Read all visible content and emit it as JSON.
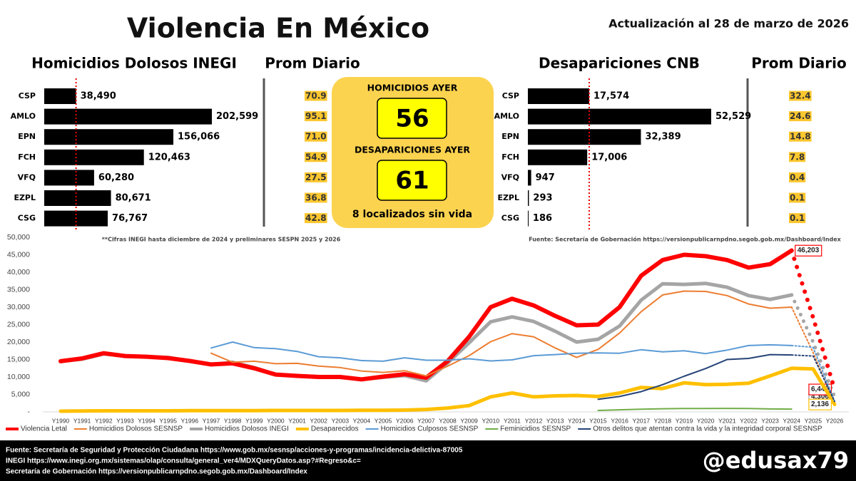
{
  "header": {
    "title": "Violencia En México",
    "update": "Actualización al 28 de marzo de 2026"
  },
  "panel": {
    "homicides": {
      "label": "HOMICIDIOS AYER",
      "value": 56
    },
    "disappearances": {
      "label": "DESAPARICIONES AYER",
      "value": 61
    },
    "note": "8 localizados sin vida"
  },
  "chart_data": [
    {
      "type": "hbar",
      "title": "Homicidios Dolosos INEGI",
      "categories": [
        "CSP",
        "AMLO",
        "EPN",
        "FCH",
        "VFQ",
        "EZPL",
        "CSG"
      ],
      "values": [
        38490,
        202599,
        156066,
        120463,
        60280,
        80671,
        76767
      ],
      "value_labels": [
        "38,490",
        "202,599",
        "156,066",
        "120,463",
        "60,280",
        "80,671",
        "76,767"
      ],
      "color": "#000000",
      "reference_line": "CSP",
      "daily": {
        "title": "Prom Diario",
        "values": [
          70.9,
          95.1,
          71.0,
          54.9,
          27.5,
          36.8,
          42.8
        ],
        "value_labels": [
          "70.9",
          "95.1",
          "71.0",
          "54.9",
          "27.5",
          "36.8",
          "42.8"
        ]
      },
      "note": "**Cifras INEGI hasta diciembre de 2024 y preliminares SESPN 2025 y 2026"
    },
    {
      "type": "hbar",
      "title": "Desapariciones CNB",
      "categories": [
        "CSP",
        "AMLO",
        "EPN",
        "FCH",
        "VFQ",
        "EZPL",
        "CSG"
      ],
      "values": [
        17574,
        52529,
        32389,
        17006,
        947,
        293,
        186
      ],
      "value_labels": [
        "17,574",
        "52,529",
        "32,389",
        "17,006",
        "947",
        "293",
        "186"
      ],
      "color": "#000000",
      "reference_line": "CSP",
      "daily": {
        "title": "Prom Diario",
        "values": [
          32.4,
          24.6,
          14.8,
          7.8,
          0.4,
          0.1,
          0.1
        ],
        "value_labels": [
          "32.4",
          "24.6",
          "14.8",
          "7.8",
          "0.4",
          "0.1",
          "0.1"
        ]
      },
      "note": "Fuente: Secretaría de Gobernación https://versionpublicarnpdno.segob.gob.mx/Dashboard/Index"
    },
    {
      "type": "line",
      "x": [
        "Y1990",
        "Y1991",
        "Y1992",
        "Y1993",
        "Y1994",
        "Y1995",
        "Y1996",
        "Y1997",
        "Y1998",
        "Y1999",
        "Y2000",
        "Y2001",
        "Y2002",
        "Y2003",
        "Y2004",
        "Y2005",
        "Y2006",
        "Y2007",
        "Y2008",
        "Y2009",
        "Y2010",
        "Y2011",
        "Y2012",
        "Y2013",
        "Y2014",
        "Y2015",
        "Y2016",
        "Y2017",
        "Y2018",
        "Y2019",
        "Y2020",
        "Y2021",
        "Y2022",
        "Y2023",
        "Y2024",
        "Y2025",
        "Y2026"
      ],
      "ylim": [
        0,
        50000
      ],
      "yticks": [
        {
          "value": 0,
          "label": "-"
        },
        {
          "value": 5000,
          "label": "5,000"
        },
        {
          "value": 10000,
          "label": "10,000"
        },
        {
          "value": 15000,
          "label": "15,000"
        },
        {
          "value": 20000,
          "label": "20,000"
        },
        {
          "value": 25000,
          "label": "25,000"
        },
        {
          "value": 30000,
          "label": "30,000"
        },
        {
          "value": 35000,
          "label": "35,000"
        },
        {
          "value": 40000,
          "label": "40,000"
        },
        {
          "value": 45000,
          "label": "45,000"
        },
        {
          "value": 50000,
          "label": "50,000"
        }
      ],
      "grid": false,
      "series": [
        {
          "name": "Violencia Letal",
          "color": "#ff0000",
          "width": 6,
          "dotted_after": "Y2024",
          "values": [
            14500,
            15300,
            16800,
            16000,
            15800,
            15400,
            14600,
            13600,
            13900,
            12500,
            10700,
            10300,
            10000,
            10000,
            9300,
            10100,
            10800,
            9800,
            14500,
            21500,
            30000,
            32400,
            30500,
            27500,
            24800,
            25000,
            30000,
            39000,
            43500,
            45000,
            44600,
            43500,
            41300,
            42300,
            46203,
            27000,
            6442
          ],
          "value_labels": [
            null,
            null,
            null,
            null,
            null,
            null,
            null,
            null,
            null,
            null,
            null,
            null,
            null,
            null,
            null,
            null,
            null,
            null,
            null,
            null,
            null,
            null,
            null,
            null,
            null,
            null,
            null,
            null,
            null,
            null,
            null,
            null,
            null,
            null,
            "46,203",
            null,
            "6,442"
          ]
        },
        {
          "name": "Homicidios Dolosos SESNSP",
          "color": "#ed7d31",
          "width": 2,
          "dotted_after": "Y2024",
          "values": [
            null,
            null,
            null,
            null,
            null,
            null,
            null,
            16800,
            14200,
            14500,
            13800,
            13900,
            13100,
            12700,
            11700,
            11300,
            11800,
            10300,
            13100,
            16100,
            20100,
            22400,
            21500,
            18300,
            15600,
            17900,
            22600,
            28700,
            33500,
            34600,
            34500,
            33300,
            30900,
            29700,
            30000,
            17000,
            2200
          ]
        },
        {
          "name": "Homicidios Dolosos INEGI",
          "color": "#a5a5a5",
          "width": 5,
          "dotted_after": "Y2024",
          "values": [
            14500,
            15100,
            16600,
            16000,
            15800,
            15600,
            14500,
            13500,
            14200,
            12700,
            10700,
            10300,
            10100,
            10000,
            9300,
            9900,
            10400,
            8900,
            14000,
            19800,
            25800,
            27200,
            25900,
            23100,
            20000,
            20800,
            24600,
            32000,
            36700,
            36500,
            36800,
            35700,
            33300,
            32200,
            33500,
            20000,
            4306
          ],
          "value_labels": [
            null,
            null,
            null,
            null,
            null,
            null,
            null,
            null,
            null,
            null,
            null,
            null,
            null,
            null,
            null,
            null,
            null,
            null,
            null,
            null,
            null,
            null,
            null,
            null,
            null,
            null,
            null,
            null,
            null,
            null,
            null,
            null,
            null,
            null,
            null,
            null,
            "4,306"
          ]
        },
        {
          "name": "Desaparecidos",
          "color": "#ffc000",
          "width": 5,
          "values": [
            200,
            250,
            300,
            300,
            300,
            300,
            350,
            350,
            350,
            350,
            400,
            400,
            400,
            400,
            450,
            450,
            500,
            700,
            1100,
            1800,
            4300,
            5400,
            4300,
            4600,
            4700,
            4400,
            5400,
            7000,
            6700,
            8300,
            7800,
            7900,
            8200,
            10300,
            12500,
            12300,
            2136
          ],
          "value_labels": [
            null,
            null,
            null,
            null,
            null,
            null,
            null,
            null,
            null,
            null,
            null,
            null,
            null,
            null,
            null,
            null,
            null,
            null,
            null,
            null,
            null,
            null,
            null,
            null,
            null,
            null,
            null,
            null,
            null,
            null,
            null,
            null,
            null,
            null,
            null,
            null,
            "2,136"
          ]
        },
        {
          "name": "Homicidios Culposos SESNSP",
          "color": "#5b9bd5",
          "width": 2,
          "dotted_after": "Y2024",
          "values": [
            null,
            null,
            null,
            null,
            null,
            null,
            null,
            18300,
            20000,
            18400,
            18100,
            17300,
            15800,
            15500,
            14700,
            14500,
            15500,
            14800,
            14800,
            15200,
            14600,
            14900,
            16100,
            16400,
            16800,
            16900,
            16800,
            17800,
            17200,
            17500,
            16700,
            17700,
            19000,
            19200,
            19000,
            18500,
            3000
          ]
        },
        {
          "name": "Feminicidios SESNSP",
          "color": "#70ad47",
          "width": 2,
          "values": [
            null,
            null,
            null,
            null,
            null,
            null,
            null,
            null,
            null,
            null,
            null,
            null,
            null,
            null,
            null,
            null,
            null,
            null,
            null,
            null,
            null,
            null,
            null,
            null,
            null,
            400,
            600,
            750,
            900,
            950,
            950,
            1000,
            950,
            830,
            800,
            null,
            null
          ]
        },
        {
          "name": "Otros delitos que atentan contra la vida y la integridad corporal SESNSP",
          "color": "#264478",
          "width": 2,
          "dotted_after": "Y2024",
          "values": [
            null,
            null,
            null,
            null,
            null,
            null,
            null,
            null,
            null,
            null,
            null,
            null,
            null,
            null,
            null,
            null,
            null,
            null,
            null,
            null,
            null,
            null,
            null,
            null,
            null,
            3600,
            4400,
            5800,
            7800,
            10200,
            12400,
            15000,
            15300,
            16400,
            16300,
            16000,
            3000
          ]
        }
      ]
    }
  ],
  "footer": {
    "sources": [
      "Fuente: Secretaría de Seguridad y Protección Ciudadana https://www.gob.mx/sesnsp/acciones-y-programas/incidencia-delictiva-87005",
      "INEGI https://www.inegi.org.mx/sistemas/olap/consulta/general_ver4/MDXQueryDatos.asp?#Regreso&c=",
      "Secretaría de Gobernación https://versionpublicarnpdno.segob.gob.mx/Dashboard/Index"
    ],
    "handle": "@edusax79"
  }
}
